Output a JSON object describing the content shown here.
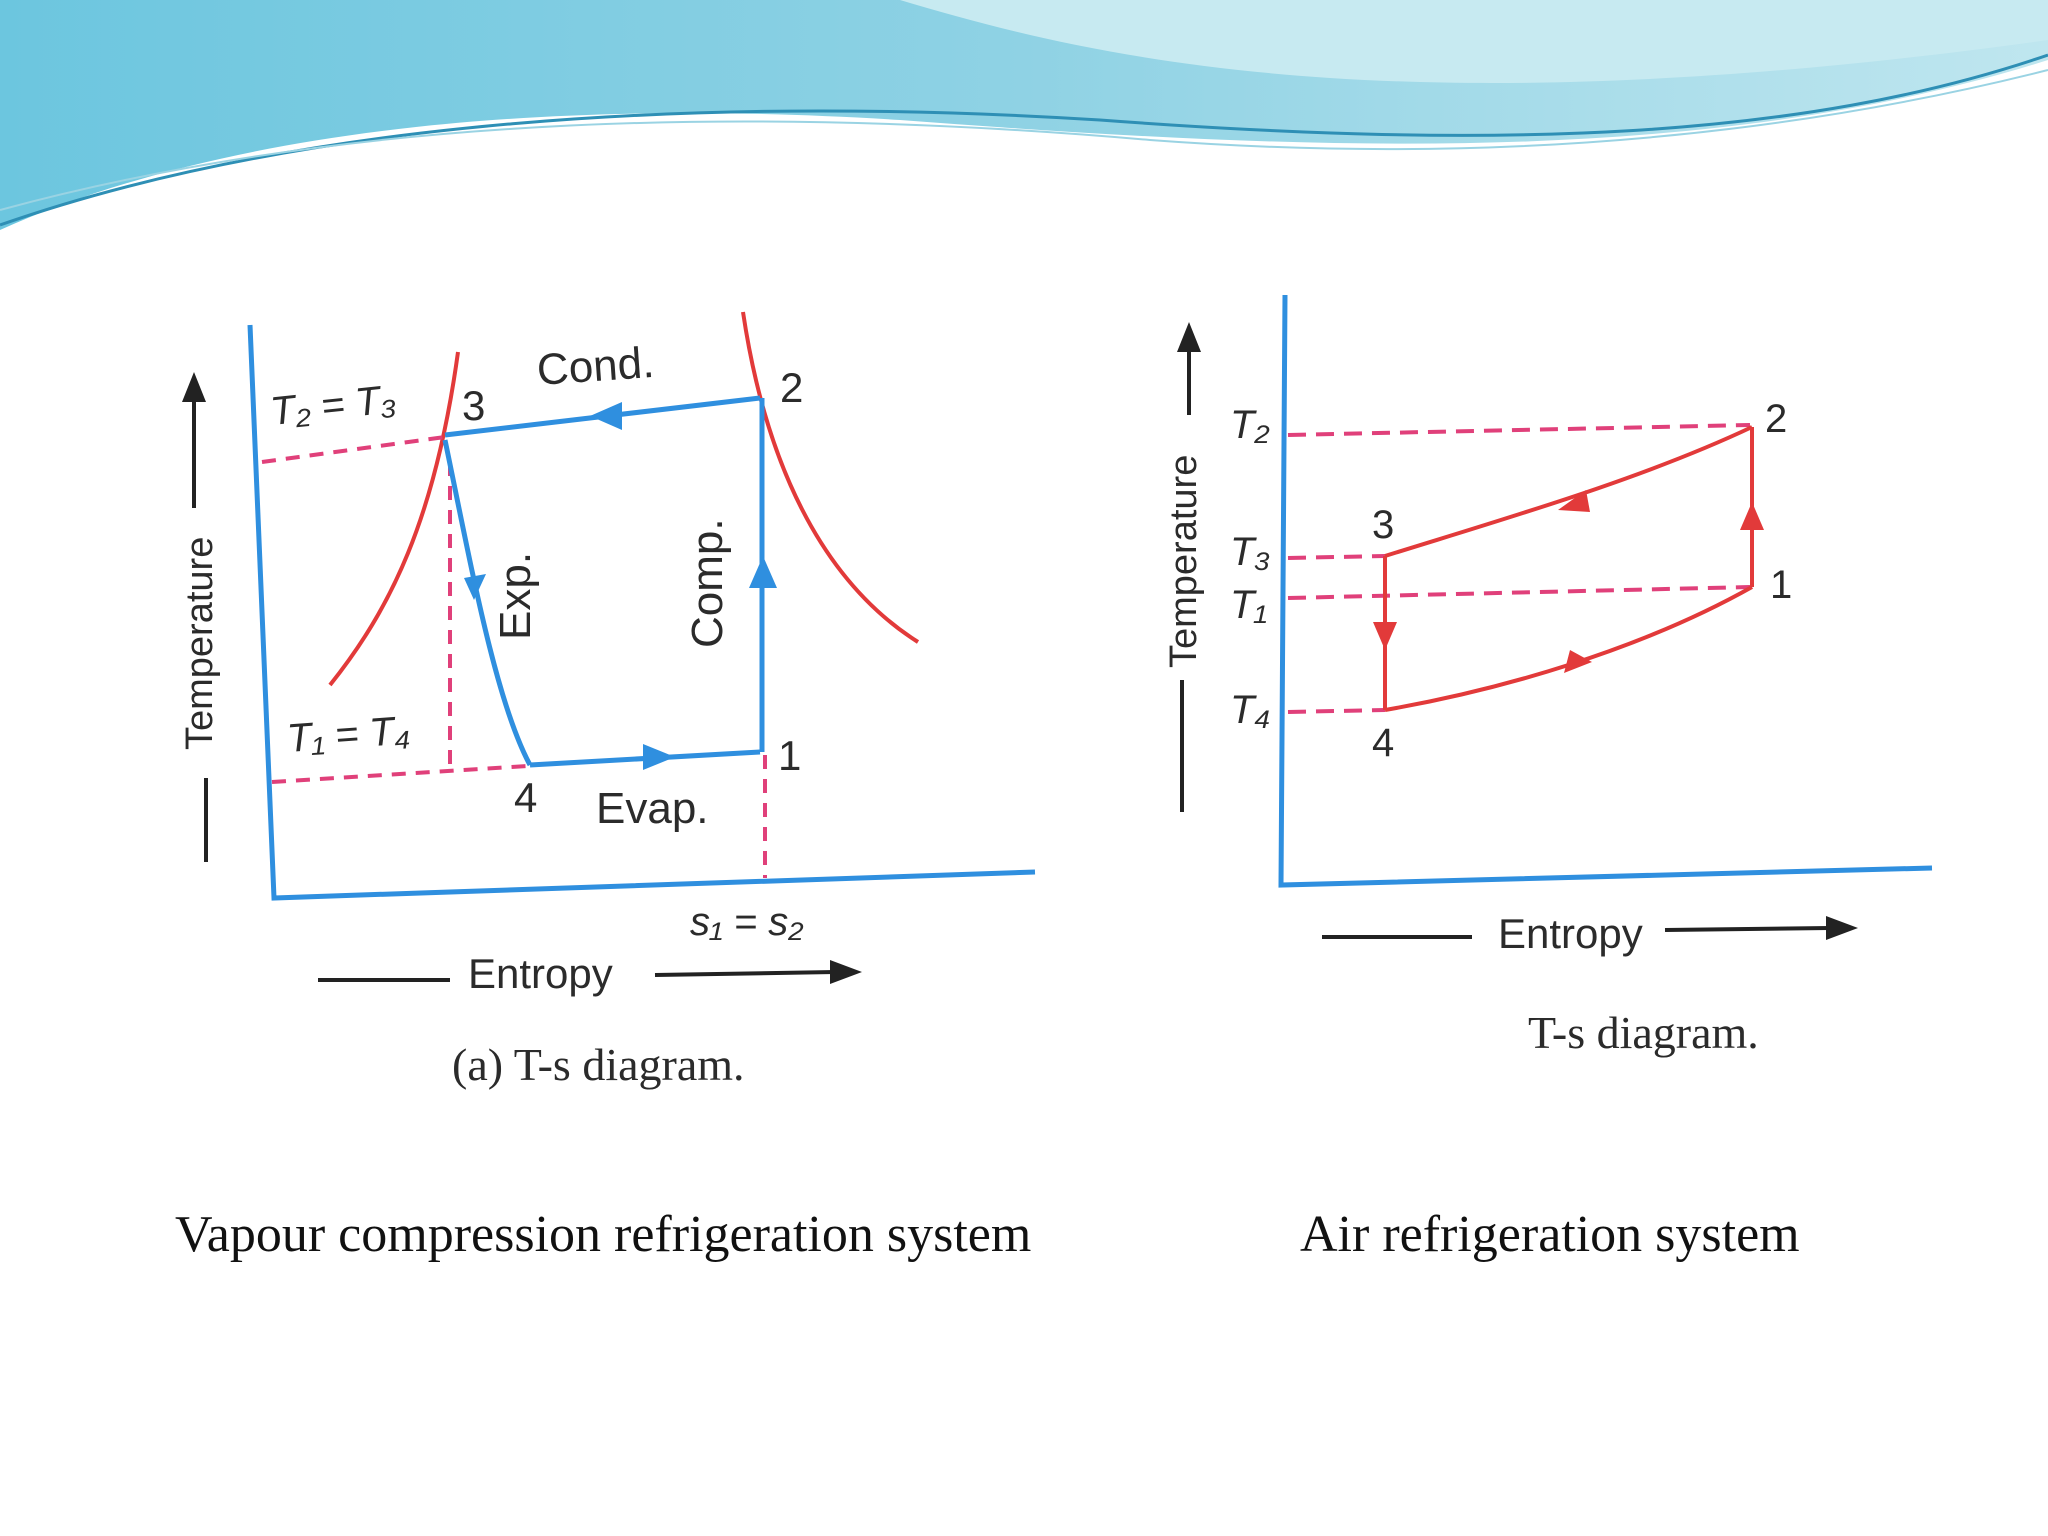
{
  "colors": {
    "process_blue": "#2f8fdf",
    "saturation_red": "#e23a3a",
    "dashed_pink": "#e0407a",
    "header_wave_dark": "#5cbfd8",
    "header_wave_light": "#a8dde8"
  },
  "vapour_diagram": {
    "t_high_label": "T₂ = T₃",
    "t_low_label": "T₁ = T₄",
    "s_label": "s₁ = s₂",
    "state_labels": [
      "1",
      "2",
      "3",
      "4"
    ],
    "process_labels": {
      "cond": "Cond.",
      "exp": "Exp.",
      "comp": "Comp.",
      "evap": "Evap."
    },
    "y_axis_label": "Temperature",
    "x_axis_label": "Entropy",
    "caption": "(a) T-s diagram."
  },
  "air_diagram": {
    "temp_labels": {
      "t2": "T₂",
      "t3": "T₃",
      "t1": "T₁",
      "t4": "T₄"
    },
    "state_labels": [
      "1",
      "2",
      "3",
      "4"
    ],
    "y_axis_label": "Temperature",
    "x_axis_label": "Entropy",
    "caption": "T-s diagram."
  },
  "captions": {
    "left": "Vapour compression refrigeration system",
    "right": "Air refrigeration system"
  }
}
